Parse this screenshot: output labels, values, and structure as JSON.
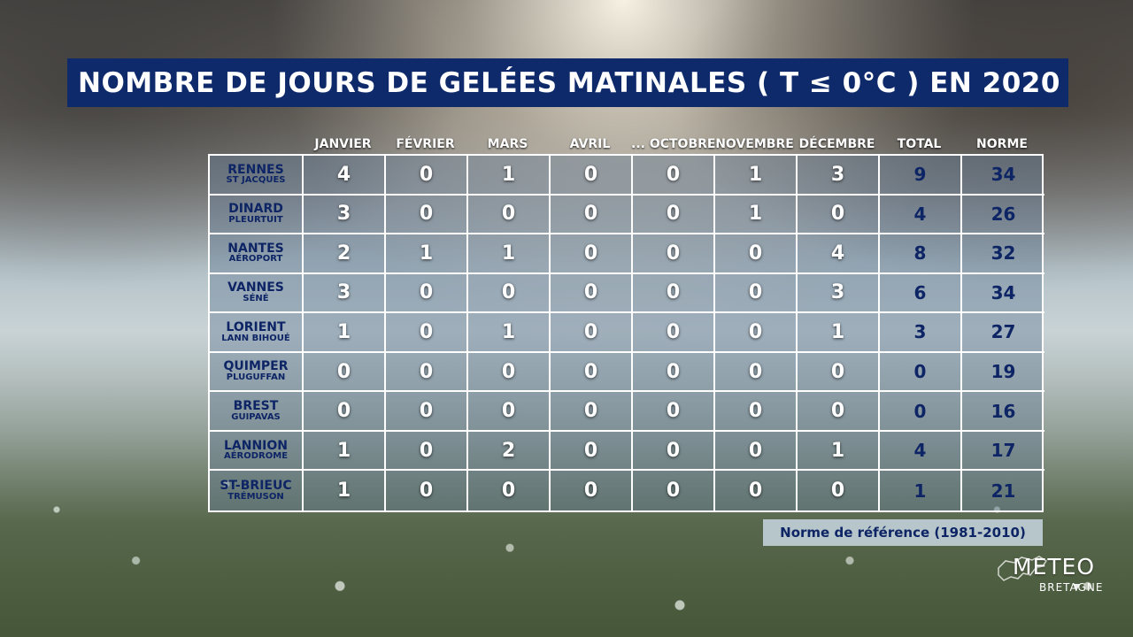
{
  "title": "NOMBRE DE JOURS DE GELÉES MATINALES ( T ≤ 0°C ) EN 2020",
  "columns": [
    "",
    "JANVIER",
    "FÉVRIER",
    "MARS",
    "AVRIL",
    "... OCTOBRE",
    "NOVEMBRE",
    "DÉCEMBRE",
    "TOTAL",
    "NORME"
  ],
  "rows": [
    {
      "station": "RENNES",
      "site": "ST JACQUES",
      "values": [
        "4",
        "0",
        "1",
        "0",
        "0",
        "1",
        "3"
      ],
      "total": "9",
      "norme": "34"
    },
    {
      "station": "DINARD",
      "site": "PLEURTUIT",
      "values": [
        "3",
        "0",
        "0",
        "0",
        "0",
        "1",
        "0"
      ],
      "total": "4",
      "norme": "26"
    },
    {
      "station": "NANTES",
      "site": "AÉROPORT",
      "values": [
        "2",
        "1",
        "1",
        "0",
        "0",
        "0",
        "4"
      ],
      "total": "8",
      "norme": "32"
    },
    {
      "station": "VANNES",
      "site": "SÉNÉ",
      "values": [
        "3",
        "0",
        "0",
        "0",
        "0",
        "0",
        "3"
      ],
      "total": "6",
      "norme": "34"
    },
    {
      "station": "LORIENT",
      "site": "LANN BIHOUÉ",
      "values": [
        "1",
        "0",
        "1",
        "0",
        "0",
        "0",
        "1"
      ],
      "total": "3",
      "norme": "27"
    },
    {
      "station": "QUIMPER",
      "site": "PLUGUFFAN",
      "values": [
        "0",
        "0",
        "0",
        "0",
        "0",
        "0",
        "0"
      ],
      "total": "0",
      "norme": "19"
    },
    {
      "station": "BREST",
      "site": "GUIPAVAS",
      "values": [
        "0",
        "0",
        "0",
        "0",
        "0",
        "0",
        "0"
      ],
      "total": "0",
      "norme": "16"
    },
    {
      "station": "LANNION",
      "site": "AÉRODROME",
      "values": [
        "1",
        "0",
        "2",
        "0",
        "0",
        "0",
        "1"
      ],
      "total": "4",
      "norme": "17"
    },
    {
      "station": "ST-BRIEUC",
      "site": "TRÉMUSON",
      "values": [
        "1",
        "0",
        "0",
        "0",
        "0",
        "0",
        "0"
      ],
      "total": "1",
      "norme": "21"
    }
  ],
  "reference_note": "Norme de référence (1981-2010)",
  "logo": {
    "main": "METEO",
    "sub": "BRETAGNE"
  },
  "colors": {
    "title_bg": "#0f2a6b",
    "navy_text": "#0d2465",
    "grid": "#ffffff"
  }
}
